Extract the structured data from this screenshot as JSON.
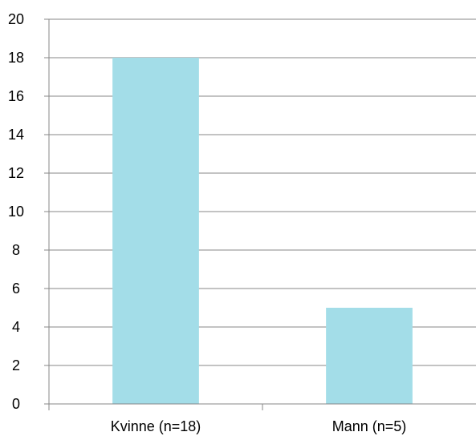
{
  "chart_data": {
    "type": "bar",
    "categories": [
      "Kvinne (n=18)",
      "Mann (n=5)"
    ],
    "values": [
      18,
      5
    ],
    "title": "",
    "xlabel": "",
    "ylabel": "",
    "ylim": [
      0,
      20
    ],
    "yticks": [
      0,
      2,
      4,
      6,
      8,
      10,
      12,
      14,
      16,
      18,
      20
    ],
    "grid": true,
    "legend": "none",
    "bar_color": "#a3dde8"
  }
}
